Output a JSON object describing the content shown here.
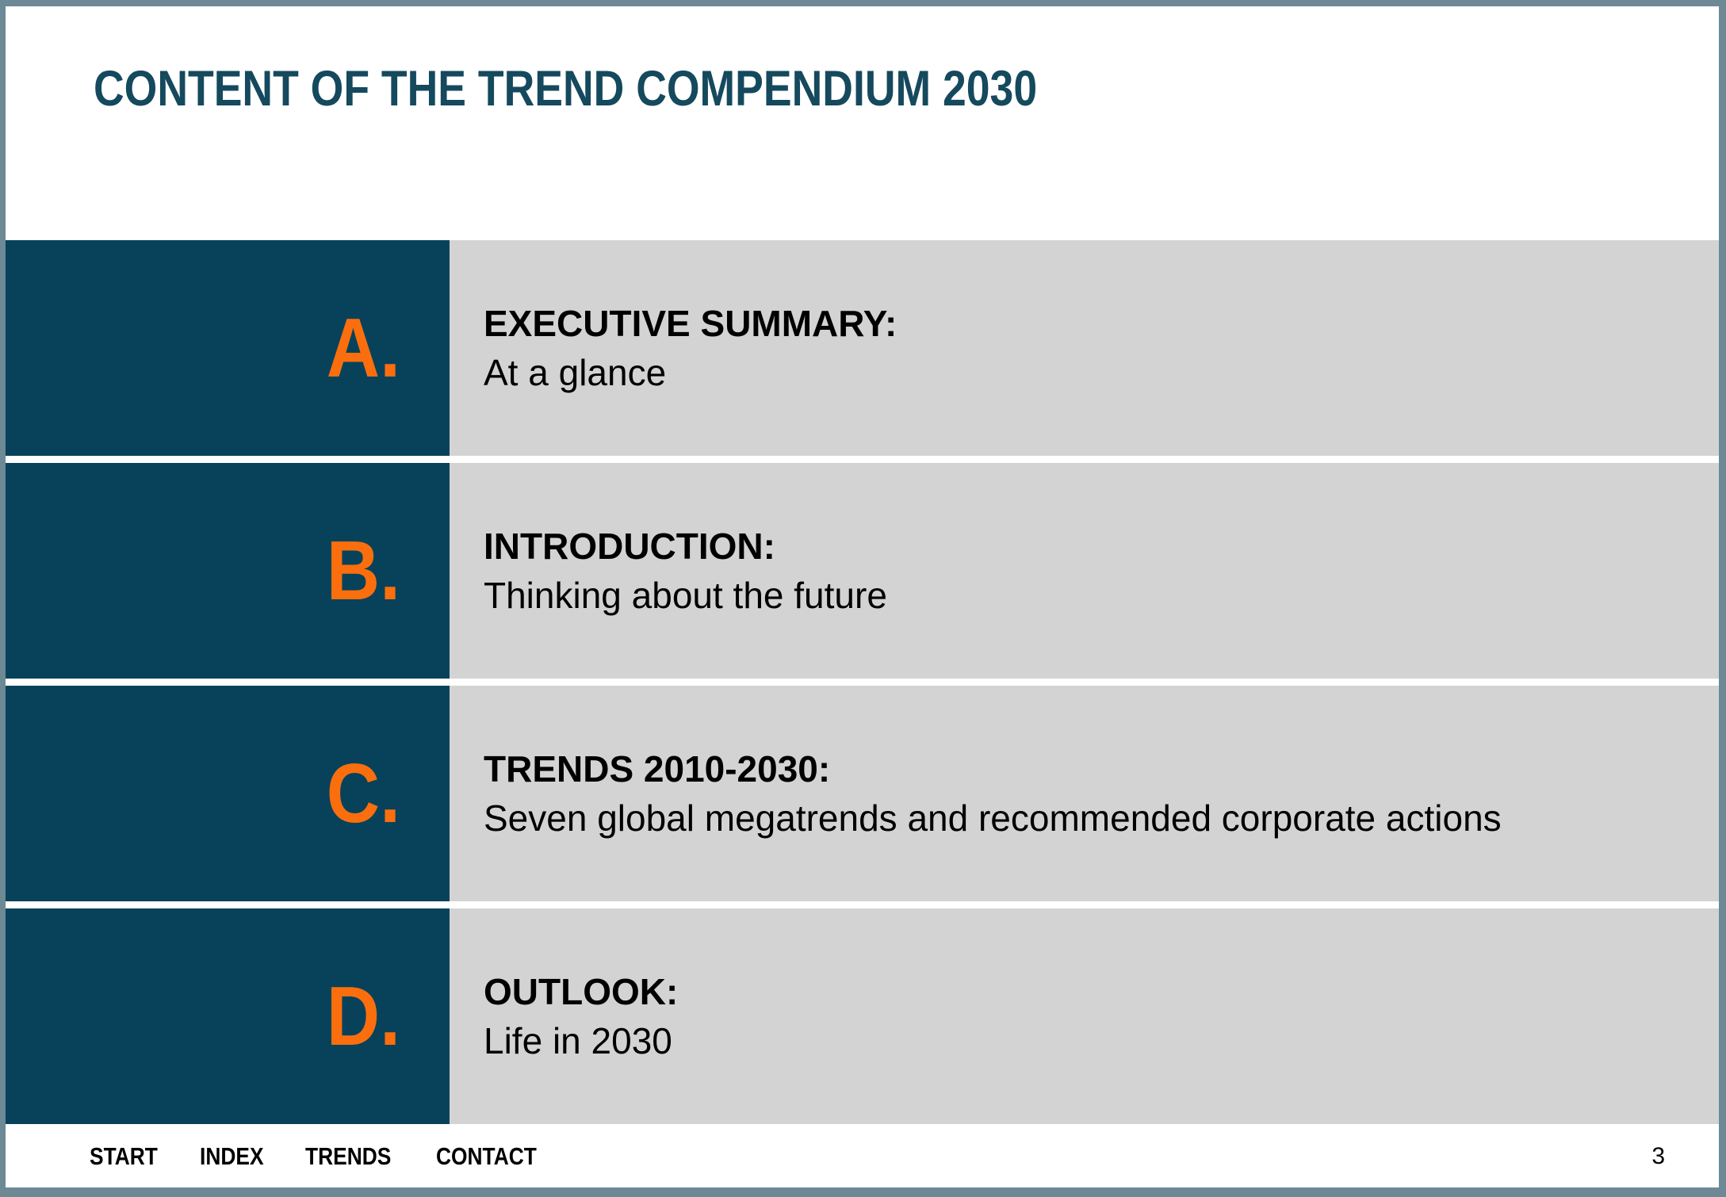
{
  "page": {
    "title": "CONTENT OF THE TREND COMPENDIUM 2030"
  },
  "sections": [
    {
      "letter": "A.",
      "heading": "EXECUTIVE SUMMARY:",
      "subtitle": "At a glance"
    },
    {
      "letter": "B.",
      "heading": "INTRODUCTION:",
      "subtitle": "Thinking about the future"
    },
    {
      "letter": "C.",
      "heading": "TRENDS 2010-2030:",
      "subtitle": "Seven global megatrends and recommended corporate actions"
    },
    {
      "letter": "D.",
      "heading": "OUTLOOK:",
      "subtitle": "Life in 2030"
    }
  ],
  "footer": {
    "nav": [
      "START",
      "INDEX",
      "TRENDS",
      "CONTACT"
    ],
    "page_number": "3"
  },
  "colors": {
    "frame": "#6c8995",
    "panel_teal": "#07425a",
    "panel_gray": "#d3d3d3",
    "accent_orange": "#fa6e0e",
    "title_teal": "#15495d",
    "body_text": "#000000",
    "background": "#ffffff"
  }
}
